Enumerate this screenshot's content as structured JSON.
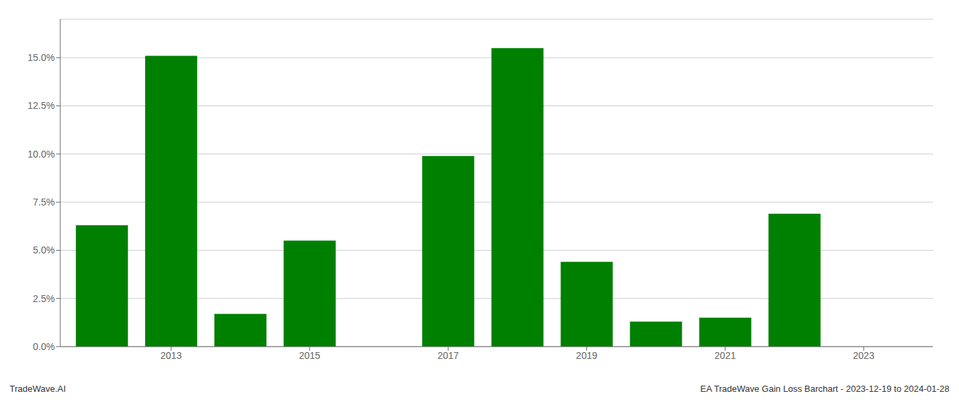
{
  "chart_data": {
    "type": "bar",
    "x": [
      2012,
      2013,
      2014,
      2015,
      2016,
      2017,
      2018,
      2019,
      2020,
      2021,
      2022,
      2023
    ],
    "values": [
      0.063,
      0.151,
      0.017,
      0.055,
      0.0,
      0.099,
      0.155,
      0.044,
      0.013,
      0.015,
      0.069,
      0.0
    ],
    "color": "#008000",
    "xlim": [
      2011.4,
      2024.0
    ],
    "xticks": [
      2013,
      2015,
      2017,
      2019,
      2021,
      2023
    ],
    "ylim": [
      0.0,
      0.17
    ],
    "yticks": [
      {
        "value": 0.0,
        "label": "0.0%"
      },
      {
        "value": 0.025,
        "label": "2.5%"
      },
      {
        "value": 0.05,
        "label": "5.0%"
      },
      {
        "value": 0.075,
        "label": "7.5%"
      },
      {
        "value": 0.1,
        "label": "10.0%"
      },
      {
        "value": 0.125,
        "label": "12.5%"
      },
      {
        "value": 0.15,
        "label": "15.0%"
      }
    ],
    "grid": true,
    "annotations": [
      "TradeWave.AI",
      "EA TradeWave Gain Loss Barchart - 2023-12-19 to 2024-01-28"
    ]
  }
}
